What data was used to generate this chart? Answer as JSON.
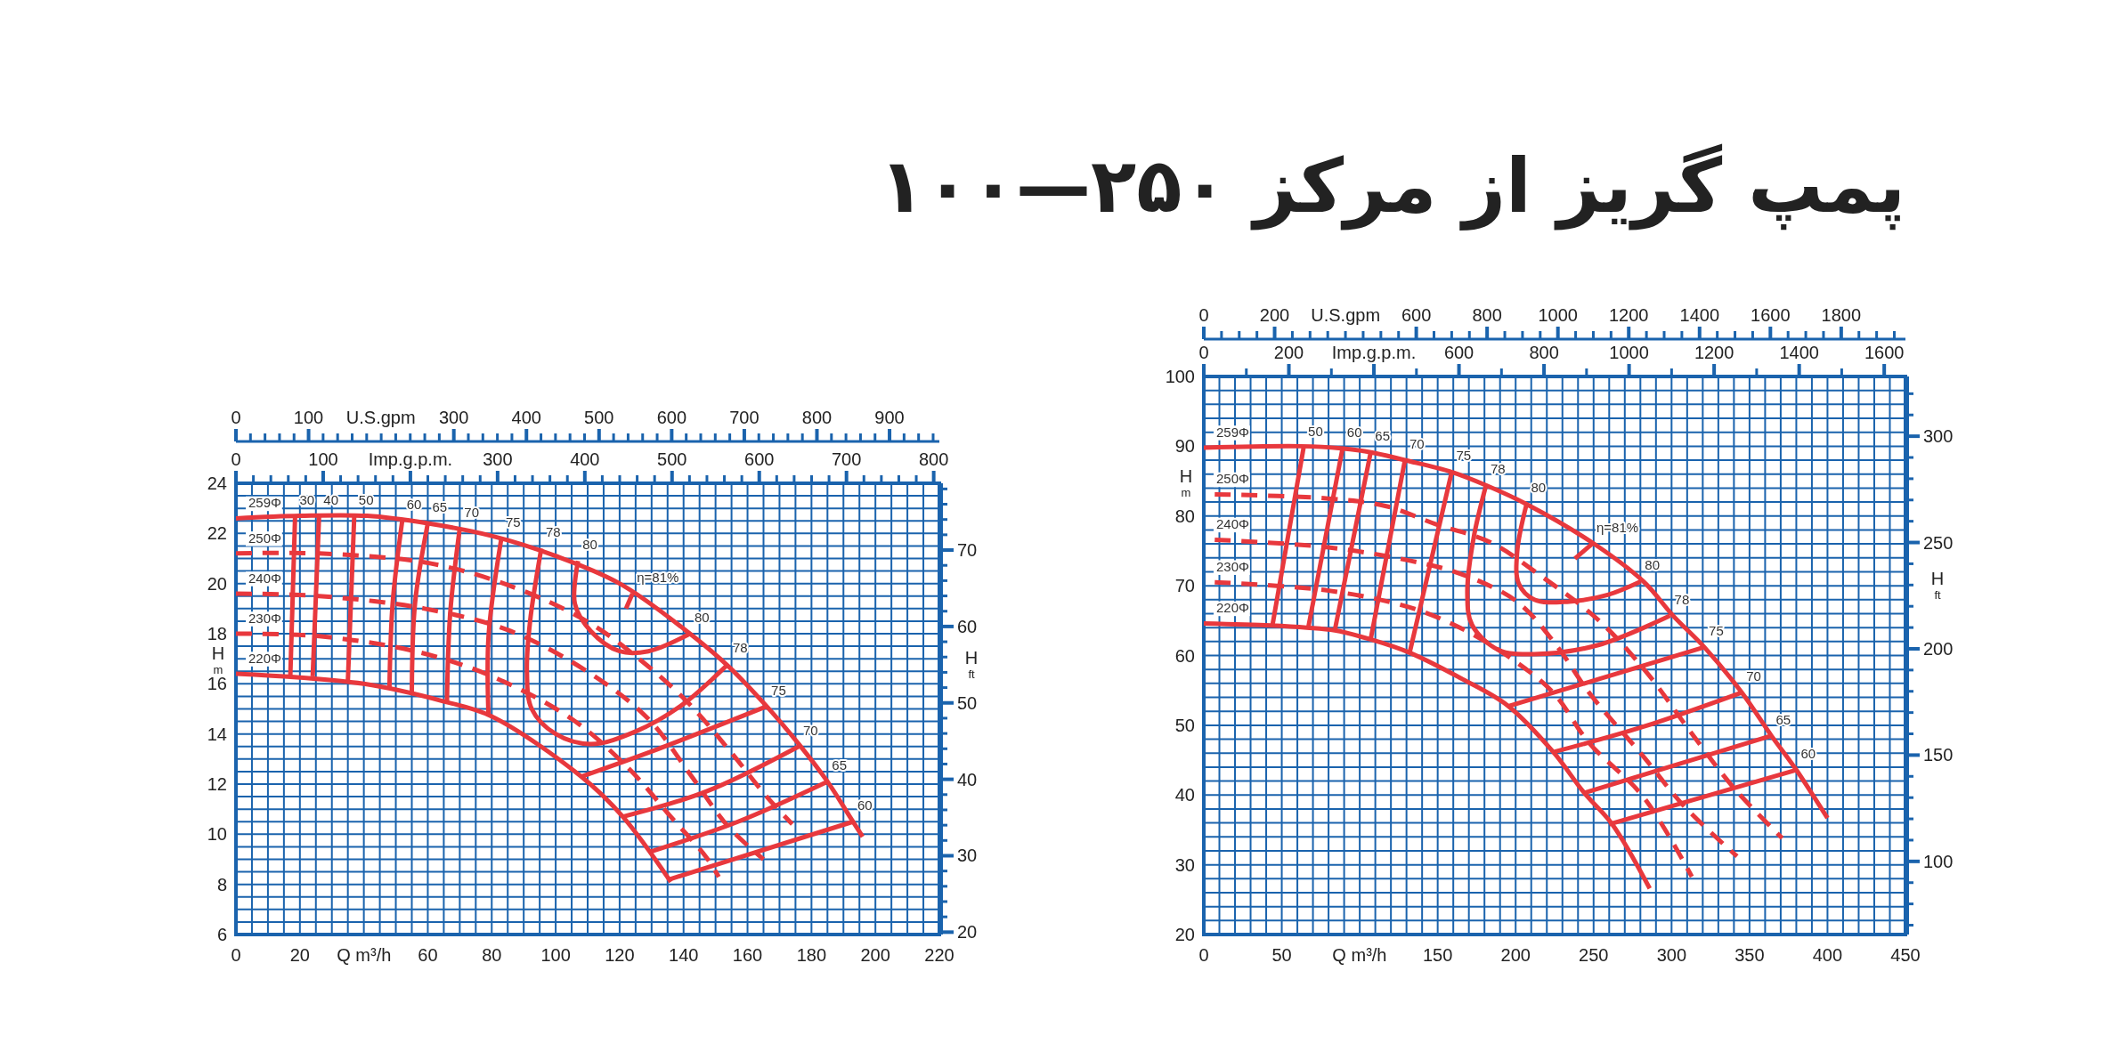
{
  "chart_data": [
    {
      "type": "line",
      "xlabel": "Q m³/h",
      "ylabel": "H$_{m}$",
      "y2label": "H$_{ft}$",
      "x2label": "U.S.gpm",
      "grid": true,
      "xlim": [
        0,
        220
      ],
      "ylim": [
        6,
        24
      ],
      "y2lim": [
        19.69,
        78.74
      ],
      "x2lim": [
        0,
        968.6
      ],
      "xticks": [
        0,
        {
          "value": 5,
          "label": null
        },
        {
          "value": 10,
          "label": null
        },
        {
          "value": 15,
          "label": null
        },
        20,
        {
          "value": 25,
          "label": null
        },
        {
          "value": 30,
          "label": null
        },
        {
          "value": 35,
          "label": null
        },
        {
          "value": 40,
          "label": null
        },
        {
          "value": 45,
          "label": null
        },
        {
          "value": 50,
          "label": null
        },
        {
          "value": 55,
          "label": null
        },
        60,
        {
          "value": 65,
          "label": null
        },
        {
          "value": 70,
          "label": null
        },
        {
          "value": 75,
          "label": null
        },
        80,
        {
          "value": 85,
          "label": null
        },
        {
          "value": 90,
          "label": null
        },
        {
          "value": 95,
          "label": null
        },
        100,
        {
          "value": 105,
          "label": null
        },
        {
          "value": 110,
          "label": null
        },
        {
          "value": 115,
          "label": null
        },
        120,
        {
          "value": 125,
          "label": null
        },
        {
          "value": 130,
          "label": null
        },
        {
          "value": 135,
          "label": null
        },
        140,
        {
          "value": 145,
          "label": null
        },
        {
          "value": 150,
          "label": null
        },
        {
          "value": 155,
          "label": null
        },
        160,
        {
          "value": 165,
          "label": null
        },
        {
          "value": 170,
          "label": null
        },
        {
          "value": 175,
          "label": null
        },
        180,
        {
          "value": 185,
          "label": null
        },
        {
          "value": 190,
          "label": null
        },
        {
          "value": 195,
          "label": null
        },
        200,
        {
          "value": 205,
          "label": null
        },
        {
          "value": 210,
          "label": null
        },
        {
          "value": 215,
          "label": null
        },
        220
      ],
      "yticks": [
        6,
        {
          "value": 6.5,
          "label": null
        },
        {
          "value": 7,
          "label": null
        },
        {
          "value": 7.5,
          "label": null
        },
        8,
        {
          "value": 8.5,
          "label": null
        },
        {
          "value": 9,
          "label": null
        },
        {
          "value": 9.5,
          "label": null
        },
        10,
        {
          "value": 10.5,
          "label": null
        },
        {
          "value": 11,
          "label": null
        },
        {
          "value": 11.5,
          "label": null
        },
        12,
        {
          "value": 12.5,
          "label": null
        },
        {
          "value": 13,
          "label": null
        },
        {
          "value": 13.5,
          "label": null
        },
        14,
        {
          "value": 14.5,
          "label": null
        },
        {
          "value": 15,
          "label": null
        },
        {
          "value": 15.5,
          "label": null
        },
        16,
        {
          "value": 16.5,
          "label": null
        },
        {
          "value": 17,
          "label": null
        },
        {
          "value": 17.5,
          "label": null
        },
        18,
        {
          "value": 18.5,
          "label": null
        },
        {
          "value": 19,
          "label": null
        },
        {
          "value": 19.5,
          "label": null
        },
        20,
        {
          "value": 20.5,
          "label": null
        },
        {
          "value": 21,
          "label": null
        },
        {
          "value": 21.5,
          "label": null
        },
        22,
        {
          "value": 22.5,
          "label": null
        },
        {
          "value": 23,
          "label": null
        },
        {
          "value": 23.5,
          "label": null
        },
        24
      ],
      "y2ticks": [
        20,
        {
          "value": 22,
          "label": null
        },
        {
          "value": 24,
          "label": null
        },
        {
          "value": 26,
          "label": null
        },
        {
          "value": 28,
          "label": null
        },
        30,
        {
          "value": 32,
          "label": null
        },
        {
          "value": 34,
          "label": null
        },
        {
          "value": 36,
          "label": null
        },
        {
          "value": 38,
          "label": null
        },
        40,
        {
          "value": 42,
          "label": null
        },
        {
          "value": 44,
          "label": null
        },
        {
          "value": 46,
          "label": null
        },
        {
          "value": 48,
          "label": null
        },
        50,
        {
          "value": 52,
          "label": null
        },
        {
          "value": 54,
          "label": null
        },
        {
          "value": 56,
          "label": null
        },
        {
          "value": 58,
          "label": null
        },
        60,
        {
          "value": 62,
          "label": null
        },
        {
          "value": 64,
          "label": null
        },
        {
          "value": 66,
          "label": null
        },
        {
          "value": 68,
          "label": null
        },
        70,
        {
          "value": 72,
          "label": null
        },
        {
          "value": 74,
          "label": null
        },
        {
          "value": 76,
          "label": null
        },
        {
          "value": 78,
          "label": null
        }
      ],
      "x2ticks": [
        0,
        100,
        {
          "value": 200,
          "label": null
        },
        300,
        400,
        500,
        600,
        700,
        800,
        900
      ],
      "series": [
        {
          "name": "259Φ",
          "color": "#e8383d",
          "line_style": "solid",
          "x": [
            0,
            20,
            41,
            60,
            80,
            100,
            120,
            142,
            154,
            166,
            176,
            185,
            192,
            196
          ],
          "values": [
            22.6,
            22.7,
            22.7,
            22.4,
            21.9,
            21.1,
            20.0,
            18.0,
            16.7,
            15.1,
            13.6,
            12.1,
            10.7,
            9.9
          ]
        },
        {
          "name": "250Φ",
          "color": "#e8383d",
          "line_style": "dashed",
          "x": [
            0,
            26,
            61,
            88,
            111,
            127,
            141,
            154,
            166,
            174
          ],
          "values": [
            21.2,
            21.2,
            20.8,
            19.8,
            18.4,
            16.9,
            15.3,
            13.4,
            11.5,
            10.4
          ]
        },
        {
          "name": "240Φ",
          "color": "#e8383d",
          "line_style": "dashed",
          "x": [
            0,
            26,
            59,
            86,
            111,
            129,
            142,
            154,
            165
          ],
          "values": [
            19.6,
            19.5,
            19.0,
            18.1,
            16.4,
            14.6,
            12.4,
            10.3,
            9.0
          ]
        },
        {
          "name": "230Φ",
          "color": "#e8383d",
          "line_style": "dashed",
          "x": [
            0,
            26,
            56,
            80,
            105,
            123,
            136,
            147,
            151
          ],
          "values": [
            18.0,
            17.9,
            17.3,
            16.3,
            14.6,
            12.6,
            10.7,
            9.1,
            8.3
          ]
        },
        {
          "name": "220Φ",
          "color": "#e8383d",
          "line_style": "solid",
          "x": [
            0,
            40,
            65,
            80,
            108,
            121,
            136
          ],
          "values": [
            16.4,
            16.0,
            15.3,
            14.7,
            12.3,
            10.7,
            8.1
          ]
        },
        {
          "color": "#e8383d",
          "line_style": "solid",
          "x": [
            18.5,
            17
          ],
          "values": [
            22.7,
            16.3
          ]
        },
        {
          "color": "#e8383d",
          "line_style": "solid",
          "x": [
            26,
            24
          ],
          "values": [
            22.7,
            16.3
          ]
        },
        {
          "color": "#e8383d",
          "line_style": "solid",
          "x": [
            37,
            35
          ],
          "values": [
            22.7,
            16.1
          ]
        },
        {
          "color": "#e8383d",
          "line_style": "solid",
          "x": [
            52,
            49,
            48
          ],
          "values": [
            22.5,
            19.2,
            15.8
          ]
        },
        {
          "color": "#e8383d",
          "line_style": "solid",
          "x": [
            60,
            56,
            55
          ],
          "values": [
            22.4,
            19.2,
            15.6
          ]
        },
        {
          "color": "#e8383d",
          "line_style": "solid",
          "x": [
            70,
            67,
            66
          ],
          "values": [
            22.2,
            18.8,
            15.3
          ]
        },
        {
          "color": "#e8383d",
          "line_style": "solid",
          "x": [
            83,
            79,
            79
          ],
          "values": [
            21.8,
            17.9,
            14.7
          ]
        },
        {
          "color": "#e8383d",
          "line_style": "solid",
          "x": [
            95.5,
            92,
            91,
            92.5,
            100,
            111,
            125,
            140,
            154
          ],
          "values": [
            21.4,
            18.5,
            16.5,
            15.0,
            14.0,
            13.6,
            14.1,
            15.2,
            16.8
          ]
        },
        {
          "color": "#e8383d",
          "line_style": "solid",
          "x": [
            107,
            106,
            111,
            120,
            129,
            142
          ],
          "values": [
            20.9,
            19.2,
            18.1,
            17.3,
            17.3,
            18.0
          ]
        },
        {
          "color": "#e8383d",
          "line_style": "solid",
          "x": [
            122,
            124
          ],
          "values": [
            19.0,
            19.6
          ]
        },
        {
          "color": "#e8383d",
          "line_style": "solid",
          "x": [
            108,
            132,
            166
          ],
          "values": [
            12.3,
            13.4,
            15.1
          ]
        },
        {
          "color": "#e8383d",
          "line_style": "solid",
          "x": [
            121,
            147,
            176
          ],
          "values": [
            10.7,
            11.7,
            13.5
          ]
        },
        {
          "color": "#e8383d",
          "line_style": "solid",
          "x": [
            129.5,
            157,
            185
          ],
          "values": [
            9.3,
            10.5,
            12.1
          ]
        },
        {
          "color": "#e8383d",
          "line_style": "solid",
          "x": [
            135.5,
            193
          ],
          "values": [
            8.2,
            10.5
          ]
        }
      ],
      "annotations": [
        {
          "text": "30",
          "x": 18.5,
          "y": 22.7
        },
        {
          "text": "40",
          "x": 26,
          "y": 22.7
        },
        {
          "text": "50",
          "x": 37,
          "y": 22.7
        },
        {
          "text": "60",
          "x": 52,
          "y": 22.5
        },
        {
          "text": "65",
          "x": 60,
          "y": 22.4
        },
        {
          "text": "70",
          "x": 70,
          "y": 22.2
        },
        {
          "text": "75",
          "x": 83,
          "y": 21.8
        },
        {
          "text": "78",
          "x": 95.5,
          "y": 21.4
        },
        {
          "text": "80",
          "x": 107,
          "y": 20.9
        },
        {
          "text": "η=81%",
          "x": 124,
          "y": 19.6
        },
        {
          "text": "80",
          "x": 142,
          "y": 18.0
        },
        {
          "text": "78",
          "x": 154,
          "y": 16.8
        },
        {
          "text": "75",
          "x": 166,
          "y": 15.1
        },
        {
          "text": "70",
          "x": 176,
          "y": 13.5
        },
        {
          "text": "65",
          "x": 185,
          "y": 12.1
        },
        {
          "text": "60",
          "x": 193,
          "y": 10.5
        },
        "0",
        "100",
        "Imp.g.p.m.",
        "300",
        "400",
        "500",
        "600",
        "700",
        "800"
      ]
    },
    {
      "type": "line",
      "title": "پمپ گریز از مرکز ۲۵۰—۱۰۰",
      "xlabel": "Q m³/h",
      "ylabel": "H$_{m}$",
      "y2label": "H$_{ft}$",
      "x2label": "U.S.gpm",
      "grid": true,
      "xlim": [
        0,
        450
      ],
      "ylim": [
        20,
        100
      ],
      "y2lim": [
        65.6,
        328.1
      ],
      "x2lim": [
        0,
        1981.4
      ],
      "xticks": [
        0,
        {
          "value": 10,
          "label": null
        },
        {
          "value": 20,
          "label": null
        },
        {
          "value": 30,
          "label": null
        },
        {
          "value": 40,
          "label": null
        },
        50,
        {
          "value": 60,
          "label": null
        },
        {
          "value": 70,
          "label": null
        },
        {
          "value": 80,
          "label": null
        },
        {
          "value": 90,
          "label": null
        },
        {
          "value": 100,
          "label": null
        },
        {
          "value": 110,
          "label": null
        },
        {
          "value": 120,
          "label": null
        },
        {
          "value": 130,
          "label": null
        },
        {
          "value": 140,
          "label": null
        },
        150,
        {
          "value": 160,
          "label": null
        },
        {
          "value": 170,
          "label": null
        },
        {
          "value": 180,
          "label": null
        },
        {
          "value": 190,
          "label": null
        },
        200,
        {
          "value": 210,
          "label": null
        },
        {
          "value": 220,
          "label": null
        },
        {
          "value": 230,
          "label": null
        },
        {
          "value": 240,
          "label": null
        },
        250,
        {
          "value": 260,
          "label": null
        },
        {
          "value": 270,
          "label": null
        },
        {
          "value": 280,
          "label": null
        },
        {
          "value": 290,
          "label": null
        },
        300,
        {
          "value": 310,
          "label": null
        },
        {
          "value": 320,
          "label": null
        },
        {
          "value": 330,
          "label": null
        },
        {
          "value": 340,
          "label": null
        },
        350,
        {
          "value": 360,
          "label": null
        },
        {
          "value": 370,
          "label": null
        },
        {
          "value": 380,
          "label": null
        },
        {
          "value": 390,
          "label": null
        },
        400,
        {
          "value": 410,
          "label": null
        },
        {
          "value": 420,
          "label": null
        },
        {
          "value": 430,
          "label": null
        },
        {
          "value": 440,
          "label": null
        },
        450
      ],
      "yticks": [
        20,
        {
          "value": 22,
          "label": null
        },
        {
          "value": 24,
          "label": null
        },
        {
          "value": 26,
          "label": null
        },
        {
          "value": 28,
          "label": null
        },
        30,
        {
          "value": 32,
          "label": null
        },
        {
          "value": 34,
          "label": null
        },
        {
          "value": 36,
          "label": null
        },
        {
          "value": 38,
          "label": null
        },
        40,
        {
          "value": 42,
          "label": null
        },
        {
          "value": 44,
          "label": null
        },
        {
          "value": 46,
          "label": null
        },
        {
          "value": 48,
          "label": null
        },
        50,
        {
          "value": 52,
          "label": null
        },
        {
          "value": 54,
          "label": null
        },
        {
          "value": 56,
          "label": null
        },
        {
          "value": 58,
          "label": null
        },
        60,
        {
          "value": 62,
          "label": null
        },
        {
          "value": 64,
          "label": null
        },
        {
          "value": 66,
          "label": null
        },
        {
          "value": 68,
          "label": null
        },
        70,
        {
          "value": 72,
          "label": null
        },
        {
          "value": 74,
          "label": null
        },
        {
          "value": 76,
          "label": null
        },
        {
          "value": 78,
          "label": null
        },
        80,
        {
          "value": 82,
          "label": null
        },
        {
          "value": 84,
          "label": null
        },
        {
          "value": 86,
          "label": null
        },
        {
          "value": 88,
          "label": null
        },
        90,
        {
          "value": 92,
          "label": null
        },
        {
          "value": 94,
          "label": null
        },
        {
          "value": 96,
          "label": null
        },
        {
          "value": 98,
          "label": null
        },
        100
      ],
      "y2ticks": [
        {
          "value": 70,
          "label": null
        },
        {
          "value": 80,
          "label": null
        },
        {
          "value": 90,
          "label": null
        },
        100,
        {
          "value": 110,
          "label": null
        },
        {
          "value": 120,
          "label": null
        },
        {
          "value": 130,
          "label": null
        },
        {
          "value": 140,
          "label": null
        },
        150,
        {
          "value": 160,
          "label": null
        },
        {
          "value": 170,
          "label": null
        },
        {
          "value": 180,
          "label": null
        },
        {
          "value": 190,
          "label": null
        },
        200,
        {
          "value": 210,
          "label": null
        },
        {
          "value": 220,
          "label": null
        },
        {
          "value": 230,
          "label": null
        },
        {
          "value": 240,
          "label": null
        },
        250,
        {
          "value": 260,
          "label": null
        },
        {
          "value": 270,
          "label": null
        },
        {
          "value": 280,
          "label": null
        },
        {
          "value": 290,
          "label": null
        },
        300,
        {
          "value": 310,
          "label": null
        },
        {
          "value": 320,
          "label": null
        }
      ],
      "x2ticks": [
        0,
        200,
        {
          "value": 400,
          "label": null
        },
        600,
        800,
        1000,
        1200,
        1400,
        1600,
        1800
      ],
      "series": [
        {
          "name": "259Φ",
          "color": "#e8383d",
          "line_style": "solid",
          "x": [
            0,
            62,
            88,
            108,
            129,
            159,
            181,
            207,
            249,
            282,
            301,
            321,
            345,
            364,
            380,
            400
          ],
          "values": [
            89.8,
            90.0,
            89.7,
            89.1,
            88.0,
            86.3,
            84.4,
            81.7,
            76.2,
            70.6,
            65.7,
            61.2,
            54.7,
            48.5,
            43.6,
            36.7
          ]
        },
        {
          "name": "250Φ",
          "color": "#e8383d",
          "line_style": "dashed",
          "x": [
            7,
            80,
            117,
            149,
            184,
            215,
            253,
            285,
            311,
            340,
            371
          ],
          "values": [
            83.1,
            82.5,
            81.4,
            78.8,
            76.2,
            71.6,
            65.1,
            57.3,
            49.4,
            41.0,
            33.8
          ]
        },
        {
          "name": "240Φ",
          "color": "#e8383d",
          "line_style": "dashed",
          "x": [
            7,
            80,
            132,
            166,
            201,
            227,
            247,
            282,
            308,
            342
          ],
          "values": [
            76.6,
            75.5,
            73.6,
            71.6,
            67.7,
            61.2,
            54.7,
            45.5,
            38.4,
            31.2
          ]
        },
        {
          "name": "230Φ",
          "color": "#e8383d",
          "line_style": "dashed",
          "x": [
            7,
            80,
            132,
            166,
            195,
            224,
            247,
            282,
            313
          ],
          "values": [
            70.5,
            69.3,
            66.9,
            63.8,
            59.9,
            54.7,
            47.5,
            39.7,
            28.3
          ]
        },
        {
          "name": "220Φ",
          "color": "#e8383d",
          "line_style": "solid",
          "x": [
            0,
            43,
            66,
            84,
            107,
            132,
            166,
            195,
            224,
            244,
            262,
            286
          ],
          "values": [
            64.6,
            64.3,
            64.0,
            63.6,
            62.3,
            60.4,
            56.6,
            52.8,
            46.2,
            40.3,
            35.8,
            26.6
          ]
        },
        {
          "color": "#e8383d",
          "line_style": "solid",
          "x": [
            64,
            44
          ],
          "values": [
            89.8,
            64.3
          ]
        },
        {
          "color": "#e8383d",
          "line_style": "solid",
          "x": [
            89,
            67
          ],
          "values": [
            89.7,
            64.0
          ]
        },
        {
          "color": "#e8383d",
          "line_style": "solid",
          "x": [
            107,
            84
          ],
          "values": [
            89.1,
            63.6
          ]
        },
        {
          "color": "#e8383d",
          "line_style": "solid",
          "x": [
            129,
            107
          ],
          "values": [
            88.0,
            62.3
          ]
        },
        {
          "color": "#e8383d",
          "line_style": "solid",
          "x": [
            159,
            132
          ],
          "values": [
            86.3,
            60.4
          ]
        },
        {
          "color": "#e8383d",
          "line_style": "solid",
          "x": [
            181,
            173,
            169,
            172,
            189,
            212,
            253,
            299
          ],
          "values": [
            84.4,
            76.8,
            69.0,
            64.4,
            60.8,
            60.2,
            61.5,
            65.7
          ]
        },
        {
          "color": "#e8383d",
          "line_style": "solid",
          "x": [
            207,
            201,
            202,
            212,
            233,
            259,
            280
          ],
          "values": [
            81.7,
            74.9,
            70.3,
            68.0,
            67.7,
            68.7,
            70.6
          ]
        },
        {
          "color": "#e8383d",
          "line_style": "solid",
          "x": [
            238,
            249
          ],
          "values": [
            73.9,
            76.0
          ]
        },
        {
          "color": "#e8383d",
          "line_style": "solid",
          "x": [
            195,
            253,
            321
          ],
          "values": [
            52.7,
            56.6,
            61.2
          ]
        },
        {
          "color": "#e8383d",
          "line_style": "solid",
          "x": [
            225,
            282,
            345
          ],
          "values": [
            46.2,
            49.8,
            54.7
          ]
        },
        {
          "color": "#e8383d",
          "line_style": "solid",
          "x": [
            244,
            364
          ],
          "values": [
            40.3,
            48.5
          ]
        },
        {
          "color": "#e8383d",
          "line_style": "solid",
          "x": [
            260,
            380
          ],
          "values": [
            35.8,
            43.6
          ]
        }
      ],
      "annotations": [
        {
          "text": "50",
          "x": 64,
          "y": 89.8
        },
        {
          "text": "60",
          "x": 89,
          "y": 89.7
        },
        {
          "text": "65",
          "x": 107,
          "y": 89.1
        },
        {
          "text": "70",
          "x": 129,
          "y": 88.0
        },
        {
          "text": "75",
          "x": 159,
          "y": 86.3
        },
        {
          "text": "78",
          "x": 181,
          "y": 84.4
        },
        {
          "text": "80",
          "x": 207,
          "y": 81.7
        },
        {
          "text": "η=81%",
          "x": 249,
          "y": 76.0
        },
        {
          "text": "80",
          "x": 280,
          "y": 70.6
        },
        {
          "text": "78",
          "x": 299,
          "y": 65.7
        },
        {
          "text": "75",
          "x": 321,
          "y": 61.2
        },
        {
          "text": "70",
          "x": 345,
          "y": 54.7
        },
        {
          "text": "65",
          "x": 364,
          "y": 48.5
        },
        {
          "text": "60",
          "x": 380,
          "y": 43.6
        },
        "0",
        "200",
        "Imp.g.p.m.",
        "600",
        "800",
        "1000",
        "1200",
        "1400",
        "1600"
      ]
    }
  ]
}
